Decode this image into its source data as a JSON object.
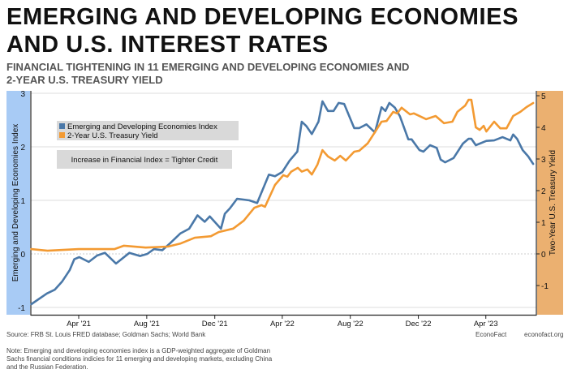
{
  "header": {
    "title_line1": "EMERGING AND DEVELOPING ECONOMIES",
    "title_line2": "AND U.S. INTEREST RATES",
    "subtitle_line1": "FINANCIAL TIGHTENING IN 11 EMERGING AND DEVELOPING ECONOMIES AND",
    "subtitle_line2": "2-YEAR U.S. TREASURY YIELD"
  },
  "chart_data": {
    "type": "line",
    "ylabel_left": "Emerging and Developing Economies Index",
    "ylabel_right": "Two-Year U.S. Treasury Yield",
    "ylim_left": [
      -1.05,
      3.05
    ],
    "ylim_right": [
      -1.7,
      5.05
    ],
    "yticks_left": [
      "3",
      "2",
      "1",
      "0",
      "-1"
    ],
    "yticks_right": [
      "5",
      "4",
      "3",
      "2",
      "1",
      "0",
      "-1"
    ],
    "xticks": [
      "Apr '21",
      "Aug '21",
      "Dec '21",
      "Apr '22",
      "Aug '22",
      "Dec '22",
      "Apr '23"
    ],
    "xrange": [
      "2021-01-06",
      "2023-06-28"
    ],
    "grid": "horizontal",
    "legend_position": "top-left",
    "annotation": "Increase in Financial Index = Tighter Credit",
    "colors": {
      "left_band": "#a8cbf5",
      "right_band": "#ebb070",
      "series_index": "#4a78a8",
      "series_yield": "#f39a32"
    },
    "series": [
      {
        "name": "Emerging and Developing Economies Index",
        "axis": "left",
        "x": [
          "2021-01-06",
          "2021-02-03",
          "2021-02-17",
          "2021-03-02",
          "2021-03-16",
          "2021-03-24",
          "2021-04-02",
          "2021-04-19",
          "2021-05-04",
          "2021-05-18",
          "2021-06-07",
          "2021-07-01",
          "2021-07-20",
          "2021-08-02",
          "2021-08-14",
          "2021-08-29",
          "2021-09-12",
          "2021-09-30",
          "2021-10-16",
          "2021-10-31",
          "2021-11-13",
          "2021-11-22",
          "2021-12-12",
          "2021-12-19",
          "2021-12-28",
          "2022-01-10",
          "2022-02-01",
          "2022-02-15",
          "2022-03-08",
          "2022-03-19",
          "2022-04-01",
          "2022-04-14",
          "2022-04-28",
          "2022-05-06",
          "2022-05-14",
          "2022-05-24",
          "2022-06-05",
          "2022-06-12",
          "2022-06-22",
          "2022-07-02",
          "2022-07-11",
          "2022-07-21",
          "2022-08-08",
          "2022-08-17",
          "2022-08-30",
          "2022-09-14",
          "2022-09-18",
          "2022-09-26",
          "2022-10-03",
          "2022-10-10",
          "2022-10-20",
          "2022-10-29",
          "2022-11-13",
          "2022-11-19",
          "2022-12-03",
          "2022-12-10",
          "2022-12-22",
          "2023-01-03",
          "2023-01-10",
          "2023-01-18",
          "2023-02-02",
          "2023-02-19",
          "2023-03-01",
          "2023-03-06",
          "2023-03-14",
          "2023-04-02",
          "2023-04-16",
          "2023-05-01",
          "2023-05-15",
          "2023-05-20",
          "2023-05-27",
          "2023-06-06",
          "2023-06-16",
          "2023-06-25"
        ],
        "y": [
          -0.94,
          -0.74,
          -0.67,
          -0.52,
          -0.3,
          -0.1,
          -0.06,
          -0.15,
          -0.03,
          0.02,
          -0.18,
          0.02,
          -0.04,
          0.0,
          0.09,
          0.07,
          0.2,
          0.38,
          0.47,
          0.72,
          0.6,
          0.7,
          0.47,
          0.75,
          0.85,
          1.03,
          1.0,
          0.95,
          1.48,
          1.45,
          1.53,
          1.74,
          1.91,
          2.47,
          2.39,
          2.24,
          2.47,
          2.85,
          2.67,
          2.67,
          2.82,
          2.8,
          2.35,
          2.35,
          2.42,
          2.27,
          2.42,
          2.74,
          2.67,
          2.82,
          2.73,
          2.57,
          2.14,
          2.14,
          1.94,
          1.91,
          2.03,
          1.98,
          1.76,
          1.71,
          1.79,
          2.06,
          2.15,
          2.15,
          2.03,
          2.11,
          2.12,
          2.18,
          2.12,
          2.23,
          2.15,
          1.94,
          1.82,
          1.68
        ]
      },
      {
        "name": "2-Year U.S. Treasury Yield",
        "axis": "right",
        "x": [
          "2021-01-06",
          "2021-02-04",
          "2021-04-01",
          "2021-06-04",
          "2021-06-21",
          "2021-07-30",
          "2021-09-08",
          "2021-10-01",
          "2021-10-26",
          "2021-11-24",
          "2021-12-08",
          "2022-01-03",
          "2022-01-22",
          "2022-02-10",
          "2022-02-23",
          "2022-03-01",
          "2022-03-19",
          "2022-04-03",
          "2022-04-10",
          "2022-04-17",
          "2022-04-29",
          "2022-05-06",
          "2022-05-16",
          "2022-05-24",
          "2022-06-03",
          "2022-06-12",
          "2022-06-22",
          "2022-07-04",
          "2022-07-14",
          "2022-07-24",
          "2022-08-08",
          "2022-08-17",
          "2022-09-01",
          "2022-09-15",
          "2022-09-26",
          "2022-10-05",
          "2022-10-17",
          "2022-10-24",
          "2022-11-01",
          "2022-11-16",
          "2022-11-23",
          "2022-12-15",
          "2023-01-01",
          "2023-01-16",
          "2023-01-31",
          "2023-02-09",
          "2023-02-23",
          "2023-03-01",
          "2023-03-06",
          "2023-03-14",
          "2023-03-21",
          "2023-03-28",
          "2023-04-02",
          "2023-04-16",
          "2023-04-27",
          "2023-05-08",
          "2023-05-20",
          "2023-06-02",
          "2023-06-13",
          "2023-06-25"
        ],
        "y": [
          0.15,
          0.1,
          0.15,
          0.15,
          0.26,
          0.2,
          0.23,
          0.33,
          0.51,
          0.56,
          0.69,
          0.8,
          1.05,
          1.46,
          1.54,
          1.49,
          2.18,
          2.49,
          2.44,
          2.6,
          2.72,
          2.6,
          2.67,
          2.51,
          2.82,
          3.28,
          3.08,
          2.95,
          3.1,
          2.95,
          3.23,
          3.26,
          3.49,
          3.87,
          4.18,
          4.2,
          4.49,
          4.44,
          4.62,
          4.41,
          4.44,
          4.26,
          4.36,
          4.13,
          4.18,
          4.49,
          4.69,
          4.87,
          4.87,
          4.0,
          3.92,
          4.05,
          3.87,
          4.18,
          3.97,
          3.97,
          4.36,
          4.49,
          4.64,
          4.77
        ]
      }
    ]
  },
  "footer": {
    "source": "Source: FRB St. Louis FRED database; Goldman Sachs; World Bank",
    "brand": "EconoFact",
    "url": "econofact.org",
    "note": "Note: Emerging and developing economies index is a GDP-weighted aggregate of Goldman Sachs financial conditions indicies for 11 emerging and developing markets, excluding China and the Russian Federation."
  }
}
